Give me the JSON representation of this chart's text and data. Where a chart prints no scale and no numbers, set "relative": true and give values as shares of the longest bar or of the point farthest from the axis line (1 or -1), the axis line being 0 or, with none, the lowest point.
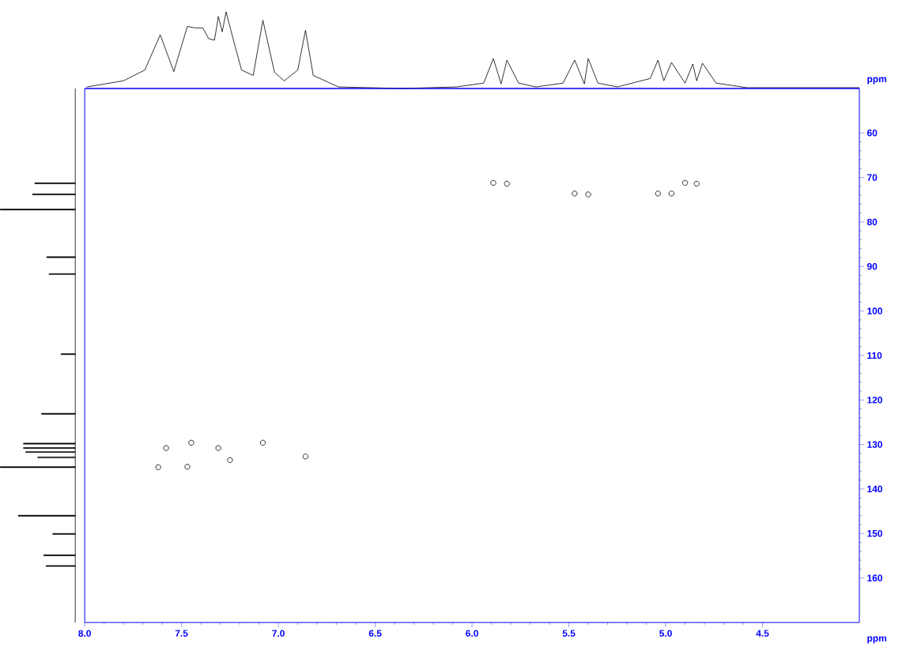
{
  "chart_data": [
    {
      "type": "line",
      "relative": true,
      "color": "#000000",
      "xlim": [
        8.0,
        4.0
      ],
      "tick_labels": false,
      "x": [
        7.99,
        7.8,
        7.69,
        7.61,
        7.54,
        7.47,
        7.43,
        7.39,
        7.36,
        7.33,
        7.31,
        7.29,
        7.27,
        7.23,
        7.19,
        7.13,
        7.08,
        7.02,
        6.97,
        6.9,
        6.86,
        6.82,
        6.69,
        6.36,
        6.08,
        5.94,
        5.89,
        5.85,
        5.82,
        5.76,
        5.67,
        5.53,
        5.47,
        5.42,
        5.4,
        5.35,
        5.25,
        5.08,
        5.04,
        5.01,
        4.97,
        4.9,
        4.86,
        4.84,
        4.81,
        4.74,
        4.58,
        4.0
      ],
      "values": [
        0.02,
        0.1,
        0.24,
        0.7,
        0.22,
        0.81,
        0.79,
        0.79,
        0.65,
        0.63,
        0.94,
        0.74,
        1.0,
        0.61,
        0.24,
        0.17,
        0.89,
        0.21,
        0.1,
        0.24,
        0.76,
        0.17,
        0.02,
        0,
        0.02,
        0.07,
        0.39,
        0.06,
        0.37,
        0.07,
        0.02,
        0.07,
        0.37,
        0.06,
        0.39,
        0.07,
        0.02,
        0.13,
        0.37,
        0.1,
        0.34,
        0.07,
        0.32,
        0.1,
        0.33,
        0.07,
        0.01,
        0.01
      ]
    },
    {
      "type": "bar",
      "orientation": "horizontal",
      "relative": true,
      "color": "#000000",
      "ylim": [
        170,
        50
      ],
      "tick_labels": false,
      "x": [
        71.3,
        73.8,
        77.2,
        87.9,
        91.7,
        109.7,
        123.1,
        129.8,
        130.8,
        131.7,
        132.9,
        135.1,
        146.0,
        150.1,
        154.9,
        157.3
      ],
      "values": [
        0.54,
        0.57,
        1,
        0.38,
        0.35,
        0.19,
        0.45,
        0.69,
        0.69,
        0.66,
        0.5,
        1,
        0.76,
        0.3,
        0.42,
        0.39
      ]
    },
    {
      "type": "scatter",
      "color": "#000000",
      "marker": "circle",
      "xlabel": "ppm",
      "ylabel": "ppm",
      "xlim": [
        8.0,
        4.0
      ],
      "ylim": [
        170,
        50
      ],
      "xticks": [
        {
          "value": 8.0,
          "label": "8.0"
        },
        {
          "value": 7.5,
          "label": "7.5"
        },
        {
          "value": 7.0,
          "label": "7.0"
        },
        {
          "value": 6.5,
          "label": "6.5"
        },
        {
          "value": 6.0,
          "label": "6.0"
        },
        {
          "value": 5.5,
          "label": "5.5"
        },
        {
          "value": 5.0,
          "label": "5.0"
        },
        {
          "value": 4.5,
          "label": "4.5"
        }
      ],
      "yticks": [
        60,
        70,
        80,
        90,
        100,
        110,
        120,
        130,
        140,
        150,
        160
      ],
      "x": [
        7.62,
        7.58,
        7.45,
        7.47,
        7.31,
        7.25,
        7.08,
        6.86,
        5.89,
        5.82,
        5.47,
        5.4,
        5.04,
        4.97,
        4.9,
        4.84
      ],
      "values": [
        135.1,
        130.8,
        129.6,
        135.0,
        130.8,
        133.5,
        129.6,
        132.7,
        71.2,
        71.4,
        73.6,
        73.8,
        73.6,
        73.6,
        71.2,
        71.4
      ]
    }
  ]
}
